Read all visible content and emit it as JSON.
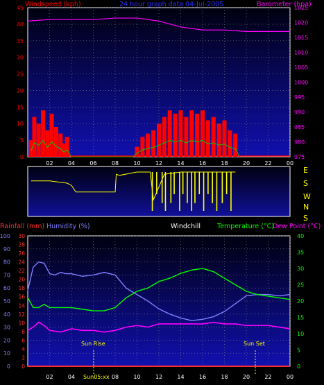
{
  "colors": {
    "wind": "#ff0000",
    "gust": "#ff2020",
    "wind_green": "#00d000",
    "barometer": "#ff00ff",
    "rainfall": "#ff3030",
    "humidity": "#7f7fff",
    "windchill": "#ffffff",
    "temperature": "#00ff00",
    "dewpoint": "#ff00ff",
    "direction": "#ffff00",
    "sun_line": "#ffff00",
    "bg_top": "#000010",
    "bg_bottom": "#1010b0"
  },
  "top": {
    "left_title": "Windspeed (kph)",
    "center_title": "24 hour graph data  04-Jul-2005",
    "right_title": "Barometer (hpa)"
  },
  "dir": {
    "labels": [
      "E",
      "S",
      "W",
      "N",
      "S"
    ]
  },
  "bottom": {
    "rain_title": "Rainfall (mm)",
    "hum_title": "Humidity (%)",
    "chill_title": "Windchill",
    "temp_title": "Temperature (°C)",
    "dew_title": "Dew Point (°C)",
    "sunrise_label": "Sun Rise",
    "sunset_label": "Sun Set",
    "sunrise_axis_label": "Sun05:xx"
  },
  "chart_data": [
    {
      "type": "area",
      "title": "24 hour graph data  04-Jul-2005",
      "x_ticks": [
        "02",
        "04",
        "06",
        "08",
        "10",
        "12",
        "14",
        "16",
        "18",
        "20",
        "22",
        "00"
      ],
      "y_left": {
        "label": "Windspeed (kph)",
        "ticks": [
          0,
          5,
          10,
          15,
          20,
          25,
          30,
          35,
          40,
          45
        ],
        "range": [
          0,
          45
        ]
      },
      "y_right": {
        "label": "Barometer (hpa)",
        "ticks": [
          975,
          980,
          985,
          990,
          995,
          1000,
          1005,
          1010,
          1015,
          1020,
          1025
        ],
        "range": [
          975,
          1025
        ]
      },
      "series": [
        {
          "name": "Windspeed (kph)",
          "x": [
            0.3,
            0.6,
            1.0,
            1.4,
            1.8,
            2.2,
            2.6,
            3.0,
            3.3,
            3.6,
            4.0,
            9.6,
            10.0,
            10.5,
            11.0,
            11.5,
            12.0,
            12.5,
            13.0,
            13.5,
            14.0,
            14.5,
            15.0,
            15.5,
            16.0,
            16.5,
            17.0,
            17.5,
            18.0,
            18.5,
            19.0,
            19.4
          ],
          "values": [
            5,
            12,
            10,
            14,
            8,
            13,
            9,
            7,
            4,
            6,
            0,
            0,
            3,
            6,
            7,
            8,
            10,
            12,
            14,
            13,
            14,
            12,
            14,
            13,
            14,
            11,
            12,
            10,
            11,
            8,
            7,
            0
          ]
        },
        {
          "name": "Barometer (hpa)",
          "x": [
            0,
            2,
            4,
            6,
            8,
            10,
            11,
            12,
            13,
            14,
            16,
            18,
            20,
            22,
            24
          ],
          "values": [
            1020.5,
            1021,
            1021,
            1021,
            1021.5,
            1021.5,
            1021,
            1020.5,
            1019.5,
            1018.5,
            1017.5,
            1017.5,
            1017,
            1017,
            1017
          ]
        }
      ]
    },
    {
      "type": "scatter",
      "title": "",
      "y_labels": [
        "E",
        "S",
        "W",
        "N",
        "S"
      ],
      "series": [
        {
          "name": "",
          "x": [
            0.3,
            2,
            3.6,
            4,
            4.4,
            6,
            8,
            8.1,
            8.4,
            10,
            11.2,
            11.5,
            12.5,
            14,
            15,
            16,
            17,
            18,
            19
          ],
          "values": [
            3.2,
            3.2,
            3.0,
            2.8,
            2.2,
            2.2,
            2.2,
            3.8,
            3.7,
            4.0,
            4.0,
            1.5,
            3.8,
            4.0,
            4.0,
            4.0,
            4.0,
            4.0,
            4.0
          ]
        }
      ]
    },
    {
      "type": "line",
      "title": "",
      "x_ticks": [
        "02",
        "04",
        "06",
        "08",
        "10",
        "12",
        "14",
        "16",
        "18",
        "20",
        "22",
        "00"
      ],
      "y_left": {
        "label": "Humidity (%)",
        "ticks": [
          0,
          10,
          20,
          30,
          40,
          50,
          60,
          70,
          80,
          90,
          100
        ],
        "range": [
          0,
          100
        ]
      },
      "y_left_rain": {
        "label": "Rainfall (mm)",
        "ticks": [
          0,
          2,
          4,
          6,
          8,
          10,
          12,
          14,
          16,
          18,
          20,
          22,
          24,
          26,
          28,
          30
        ],
        "range": [
          0,
          30
        ]
      },
      "y_right": {
        "label": "Temperature (°C)",
        "ticks": [
          0,
          5,
          10,
          15,
          20,
          25,
          30,
          35,
          40
        ],
        "range": [
          0,
          40
        ]
      },
      "series": [
        {
          "name": "Humidity (%)",
          "x": [
            0,
            0.5,
            1,
            1.5,
            2,
            2.5,
            3,
            3.5,
            4,
            5,
            6,
            7,
            8,
            9,
            10,
            11,
            12,
            13,
            14,
            15,
            16,
            17,
            18,
            19,
            20,
            21,
            22,
            23,
            24
          ],
          "values": [
            58,
            76,
            80,
            79,
            71,
            70,
            72,
            71,
            71,
            69,
            70,
            72,
            70,
            60,
            55,
            50,
            44,
            40,
            37,
            35,
            36,
            38,
            42,
            48,
            54,
            55,
            55,
            54,
            55
          ]
        },
        {
          "name": "Temperature (°C)",
          "x": [
            0,
            0.5,
            1,
            1.5,
            2,
            3,
            4,
            5,
            6,
            7,
            8,
            9,
            10,
            11,
            12,
            13,
            14,
            15,
            16,
            17,
            18,
            19,
            20,
            21,
            22,
            23,
            24
          ],
          "values": [
            21,
            18,
            18,
            19,
            18,
            18,
            18,
            17.5,
            17,
            17,
            18,
            21,
            23,
            24,
            26,
            27,
            28.5,
            29.5,
            30,
            29,
            27,
            25,
            23,
            22,
            21.5,
            21,
            20.5
          ]
        },
        {
          "name": "Dew Point (°C)",
          "x": [
            0,
            0.5,
            1,
            1.5,
            2,
            3,
            4,
            5,
            6,
            7,
            8,
            9,
            10,
            11,
            12,
            13,
            14,
            15,
            16,
            17,
            18,
            19,
            20,
            21,
            22,
            23,
            24
          ],
          "values": [
            11,
            12,
            13.5,
            12.5,
            11,
            10.5,
            11.5,
            11,
            11,
            10.5,
            11,
            12,
            12.5,
            12,
            13,
            13,
            13,
            13,
            13,
            13.5,
            13,
            13,
            12.5,
            12.5,
            12.5,
            12,
            11.5
          ]
        },
        {
          "name": "Rainfall (mm)",
          "x": [
            0,
            24
          ],
          "values": [
            0,
            0
          ]
        }
      ],
      "annotations": [
        "Sun Rise",
        "Sun Set"
      ]
    }
  ]
}
